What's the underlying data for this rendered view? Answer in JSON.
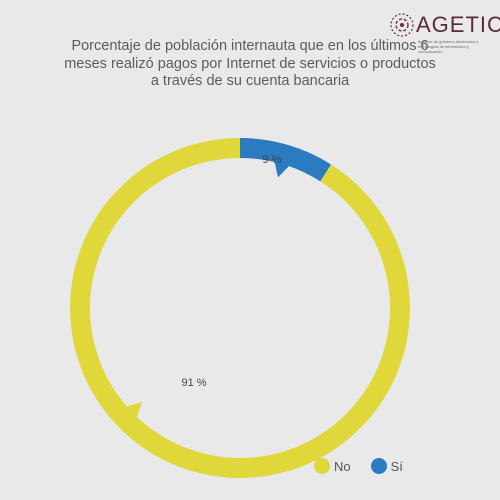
{
  "logo": {
    "name": "AGETIC",
    "tagline": "Agencia de gobierno electrónico y tecnologías de información y comunicación"
  },
  "chart_data": {
    "type": "pie",
    "title": "Porcentaje de población internauta que en los últimos 6 meses realizó pagos por Internet de servicios o productos a través de su cuenta bancaria",
    "donut": true,
    "categories": [
      "No",
      "Sí"
    ],
    "values": [
      91,
      9
    ],
    "labels": [
      "91 %",
      "9 %"
    ],
    "colors": [
      "#e0d83a",
      "#2a7bc0"
    ],
    "legend_position": "bottom-right"
  }
}
